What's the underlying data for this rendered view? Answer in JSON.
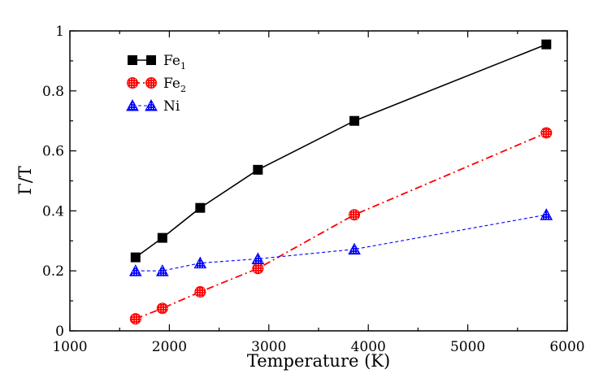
{
  "chart_data": {
    "type": "line",
    "title": "",
    "xlabel": "Temperature (K)",
    "ylabel": "Γ/T",
    "xlim": [
      1000,
      6000
    ],
    "ylim": [
      0,
      1
    ],
    "x_ticks": [
      "1000",
      "2000",
      "3000",
      "4000",
      "5000",
      "6000"
    ],
    "y_ticks": [
      "0",
      "0.2",
      "0.4",
      "0.6",
      "0.8",
      "1"
    ],
    "grid": false,
    "legend_position": "top-left",
    "series": [
      {
        "name": "Fe",
        "subscript": "1",
        "color": "#000000",
        "marker": "square",
        "line_style": "solid",
        "x": [
          1660,
          1930,
          2310,
          2890,
          3860,
          5790
        ],
        "y": [
          0.245,
          0.31,
          0.41,
          0.537,
          0.7,
          0.955
        ]
      },
      {
        "name": "Fe",
        "subscript": "2",
        "color": "#ff0000",
        "marker": "circle",
        "line_style": "dash-dot",
        "x": [
          1660,
          1930,
          2310,
          2890,
          3860,
          5790
        ],
        "y": [
          0.04,
          0.075,
          0.13,
          0.208,
          0.387,
          0.66
        ]
      },
      {
        "name": "Ni",
        "subscript": "",
        "color": "#0000ff",
        "marker": "triangle",
        "line_style": "dashed",
        "x": [
          1660,
          1930,
          2310,
          2890,
          3860,
          5790
        ],
        "y": [
          0.2,
          0.2,
          0.226,
          0.24,
          0.272,
          0.387
        ]
      }
    ]
  }
}
